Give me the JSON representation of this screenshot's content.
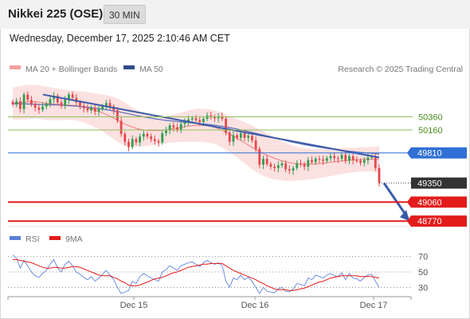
{
  "header": {
    "title": "Nikkei 225 (OSE)",
    "timeframe": "30 MIN",
    "timestamp": "Wednesday, December 17, 2025 2:10:46 AM CET"
  },
  "legend": {
    "ma20_bb": "MA 20 + Bollinger Bands",
    "ma50": "MA 50",
    "copyright": "Research © 2025 Trading Central",
    "rsi": "RSI",
    "rsi_ma": "9MA"
  },
  "colors": {
    "candle_red": "#e5484d",
    "candle_green": "#2e9e4f",
    "bollinger_fill": "#fbdcdc",
    "ma20": "#ee7d7d",
    "ma50": "#5a6fb8",
    "trendline": "#3a5aa8",
    "pivot_blue": "#2f6fd6",
    "support_red": "#e31b1b",
    "last_price": "#333333",
    "resistance_green": "#8fbf5a",
    "rsi_line": "#6f8fe0",
    "rsi_ma_line": "#e31b1b"
  },
  "chart_data": [
    {
      "type": "candlestick",
      "title": "Nikkei 225 (OSE) 30 MIN",
      "ylim": [
        48700,
        50950
      ],
      "x_ticks": [
        "Dec 15",
        "Dec 16",
        "Dec 17"
      ],
      "levels": [
        {
          "value": 50360,
          "label": "50360",
          "kind": "resistance",
          "color": "#8fbf5a"
        },
        {
          "value": 50160,
          "label": "50160",
          "kind": "resistance",
          "color": "#8fbf5a"
        },
        {
          "value": 49810,
          "label": "49810",
          "kind": "pivot",
          "color": "#2f6fd6"
        },
        {
          "value": 49350,
          "label": "49350",
          "kind": "last",
          "color": "#333333"
        },
        {
          "value": 49060,
          "label": "49060",
          "kind": "support",
          "color": "#e31b1b"
        },
        {
          "value": 48770,
          "label": "48770",
          "kind": "support",
          "color": "#e31b1b"
        }
      ],
      "trendline": {
        "start": 50700,
        "end": 49740
      },
      "close": [
        50550,
        50600,
        50480,
        50700,
        50620,
        50560,
        50500,
        50470,
        50520,
        50560,
        50630,
        50680,
        50580,
        50530,
        50620,
        50700,
        50650,
        50580,
        50530,
        50490,
        50460,
        50500,
        50440,
        50480,
        50520,
        50570,
        50520,
        50460,
        50300,
        50100,
        49980,
        49900,
        50020,
        49970,
        50060,
        50100,
        50060,
        50020,
        49990,
        49970,
        50110,
        50150,
        50230,
        50200,
        50160,
        50250,
        50290,
        50320,
        50340,
        50310,
        50280,
        50330,
        50380,
        50360,
        50340,
        50370,
        50330,
        50120,
        49980,
        50080,
        50040,
        50110,
        50040,
        50070,
        50000,
        49870,
        49630,
        49720,
        49640,
        49600,
        49580,
        49620,
        49650,
        49560,
        49540,
        49580,
        49650,
        49640,
        49600,
        49700,
        49670,
        49720,
        49710,
        49690,
        49730,
        49760,
        49730,
        49720,
        49780,
        49690,
        49760,
        49700,
        49690,
        49660,
        49700,
        49740,
        49750,
        49580,
        49350
      ],
      "ma20": [
        50560,
        50570,
        50575,
        50580,
        50585,
        50590,
        50590,
        50585,
        50575,
        50565,
        50560,
        50555,
        50550,
        50545,
        50540,
        50540,
        50535,
        50530,
        50520,
        50510,
        50495,
        50480,
        50460,
        50440,
        50420,
        50395,
        50370,
        50340,
        50310,
        50280,
        50250,
        50225,
        50205,
        50185,
        50170,
        50160,
        50155,
        50150,
        50150,
        50150,
        50155,
        50160,
        50170,
        50180,
        50190,
        50200,
        50210,
        50220,
        50225,
        50230,
        50232,
        50230,
        50225,
        50215,
        50200,
        50180,
        50155,
        50125,
        50095,
        50065,
        50035,
        50000,
        49965,
        49930,
        49895,
        49860,
        49830,
        49800,
        49775,
        49750,
        49728,
        49708,
        49690,
        49675,
        49662,
        49652,
        49645,
        49640,
        49638,
        49638,
        49640,
        49643,
        49648,
        49654,
        49660,
        49667,
        49674,
        49680,
        49686,
        49692,
        49697,
        49702,
        49706,
        49710,
        49712,
        49713,
        49714,
        49712,
        49708
      ],
      "bb_upper": [
        50800,
        50820,
        50830,
        50840,
        50845,
        50850,
        50845,
        50840,
        50830,
        50820,
        50810,
        50800,
        50790,
        50780,
        50770,
        50765,
        50760,
        50755,
        50750,
        50745,
        50740,
        50730,
        50720,
        50710,
        50700,
        50690,
        50680,
        50660,
        50640,
        50610,
        50580,
        50540,
        50500,
        50470,
        50440,
        50410,
        50390,
        50375,
        50365,
        50360,
        50360,
        50365,
        50375,
        50390,
        50405,
        50420,
        50440,
        50460,
        50470,
        50480,
        50485,
        50485,
        50480,
        50470,
        50455,
        50440,
        50420,
        50395,
        50370,
        50350,
        50330,
        50305,
        50280,
        50255,
        50230,
        50200,
        50170,
        50140,
        50110,
        50080,
        50050,
        50020,
        49990,
        49965,
        49940,
        49920,
        49900,
        49890,
        49880,
        49875,
        49870,
        49870,
        49870,
        49872,
        49875,
        49878,
        49880,
        49882,
        49884,
        49886,
        49888,
        49890,
        49892,
        49894,
        49896,
        49898,
        49900,
        49905,
        49910
      ],
      "bb_lower": [
        50320,
        50320,
        50320,
        50320,
        50325,
        50330,
        50335,
        50330,
        50320,
        50310,
        50310,
        50310,
        50310,
        50310,
        50310,
        50315,
        50310,
        50305,
        50290,
        50275,
        50250,
        50230,
        50200,
        50170,
        50140,
        50100,
        50060,
        50020,
        49980,
        49950,
        49920,
        49910,
        49910,
        49900,
        49900,
        49910,
        49920,
        49925,
        49935,
        49940,
        49950,
        49955,
        49965,
        49970,
        49975,
        49980,
        49980,
        49980,
        49980,
        49980,
        49979,
        49975,
        49970,
        49960,
        49945,
        49920,
        49890,
        49855,
        49820,
        49780,
        49740,
        49695,
        49650,
        49605,
        49560,
        49520,
        49490,
        49460,
        49440,
        49420,
        49406,
        49396,
        49390,
        49385,
        49384,
        49384,
        49390,
        49390,
        49396,
        49401,
        49410,
        49416,
        49426,
        49436,
        49445,
        49456,
        49468,
        49478,
        49488,
        49498,
        49506,
        49514,
        49520,
        49526,
        49528,
        49528,
        49528,
        49519,
        49506
      ],
      "ma50": [
        50560,
        50560,
        50560,
        50558,
        50556,
        50554,
        50552,
        50550,
        50548,
        50546,
        50544,
        50542,
        50540,
        50537,
        50534,
        50530,
        50526,
        50522,
        50517,
        50512,
        50506,
        50500,
        50493,
        50486,
        50478,
        50470,
        50460,
        50450,
        50440,
        50430,
        50418,
        50406,
        50394,
        50382,
        50370,
        50360,
        50350,
        50340,
        50330,
        50322,
        50314,
        50306,
        50300,
        50294,
        50288,
        50282,
        50278,
        50273,
        50268,
        50263,
        50258,
        50252,
        50246,
        50240,
        50232,
        50224,
        50216,
        50206,
        50196,
        50185,
        50174,
        50162,
        50150,
        50137,
        50124,
        50110,
        50096,
        50082,
        50068,
        50054,
        50040,
        50026,
        50012,
        49998,
        49984,
        49972,
        49960,
        49948,
        49936,
        49926,
        49916,
        49906,
        49896,
        49888,
        49880,
        49872,
        49864,
        49856,
        49849,
        49842,
        49836,
        49830,
        49824,
        49818,
        49813,
        49808,
        49803,
        49798,
        49793
      ]
    },
    {
      "type": "line",
      "title": "RSI",
      "ylim": [
        20,
        80
      ],
      "y_ticks": [
        70,
        50,
        30
      ],
      "series": [
        {
          "name": "RSI",
          "values": [
            72,
            68,
            55,
            65,
            58,
            50,
            45,
            43,
            48,
            52,
            60,
            66,
            55,
            50,
            60,
            64,
            58,
            50,
            47,
            43,
            40,
            44,
            38,
            42,
            47,
            52,
            46,
            40,
            30,
            22,
            24,
            26,
            38,
            35,
            44,
            48,
            45,
            42,
            40,
            38,
            50,
            53,
            58,
            55,
            52,
            58,
            60,
            62,
            63,
            60,
            57,
            62,
            65,
            62,
            60,
            62,
            58,
            38,
            30,
            42,
            40,
            46,
            40,
            43,
            38,
            30,
            22,
            30,
            25,
            24,
            23,
            28,
            30,
            25,
            24,
            28,
            35,
            34,
            32,
            42,
            40,
            46,
            44,
            42,
            46,
            48,
            45,
            44,
            49,
            40,
            48,
            42,
            41,
            38,
            43,
            46,
            47,
            38,
            30
          ]
        },
        {
          "name": "9MA",
          "values": [
            66,
            66,
            65,
            64,
            63,
            62,
            60,
            58,
            56,
            55,
            55,
            56,
            56,
            55,
            55,
            56,
            57,
            57,
            56,
            54,
            52,
            50,
            48,
            46,
            45,
            45,
            45,
            43,
            41,
            38,
            36,
            33,
            32,
            32,
            33,
            35,
            37,
            39,
            41,
            42,
            43,
            45,
            47,
            49,
            50,
            52,
            54,
            56,
            57,
            58,
            59,
            60,
            60,
            61,
            61,
            61,
            61,
            58,
            55,
            52,
            50,
            48,
            46,
            44,
            42,
            40,
            37,
            35,
            32,
            30,
            28,
            27,
            27,
            27,
            26,
            26,
            27,
            28,
            29,
            31,
            33,
            35,
            37,
            38,
            40,
            42,
            43,
            44,
            45,
            45,
            45,
            45,
            45,
            44,
            44,
            44,
            44,
            43,
            42
          ]
        }
      ]
    }
  ]
}
